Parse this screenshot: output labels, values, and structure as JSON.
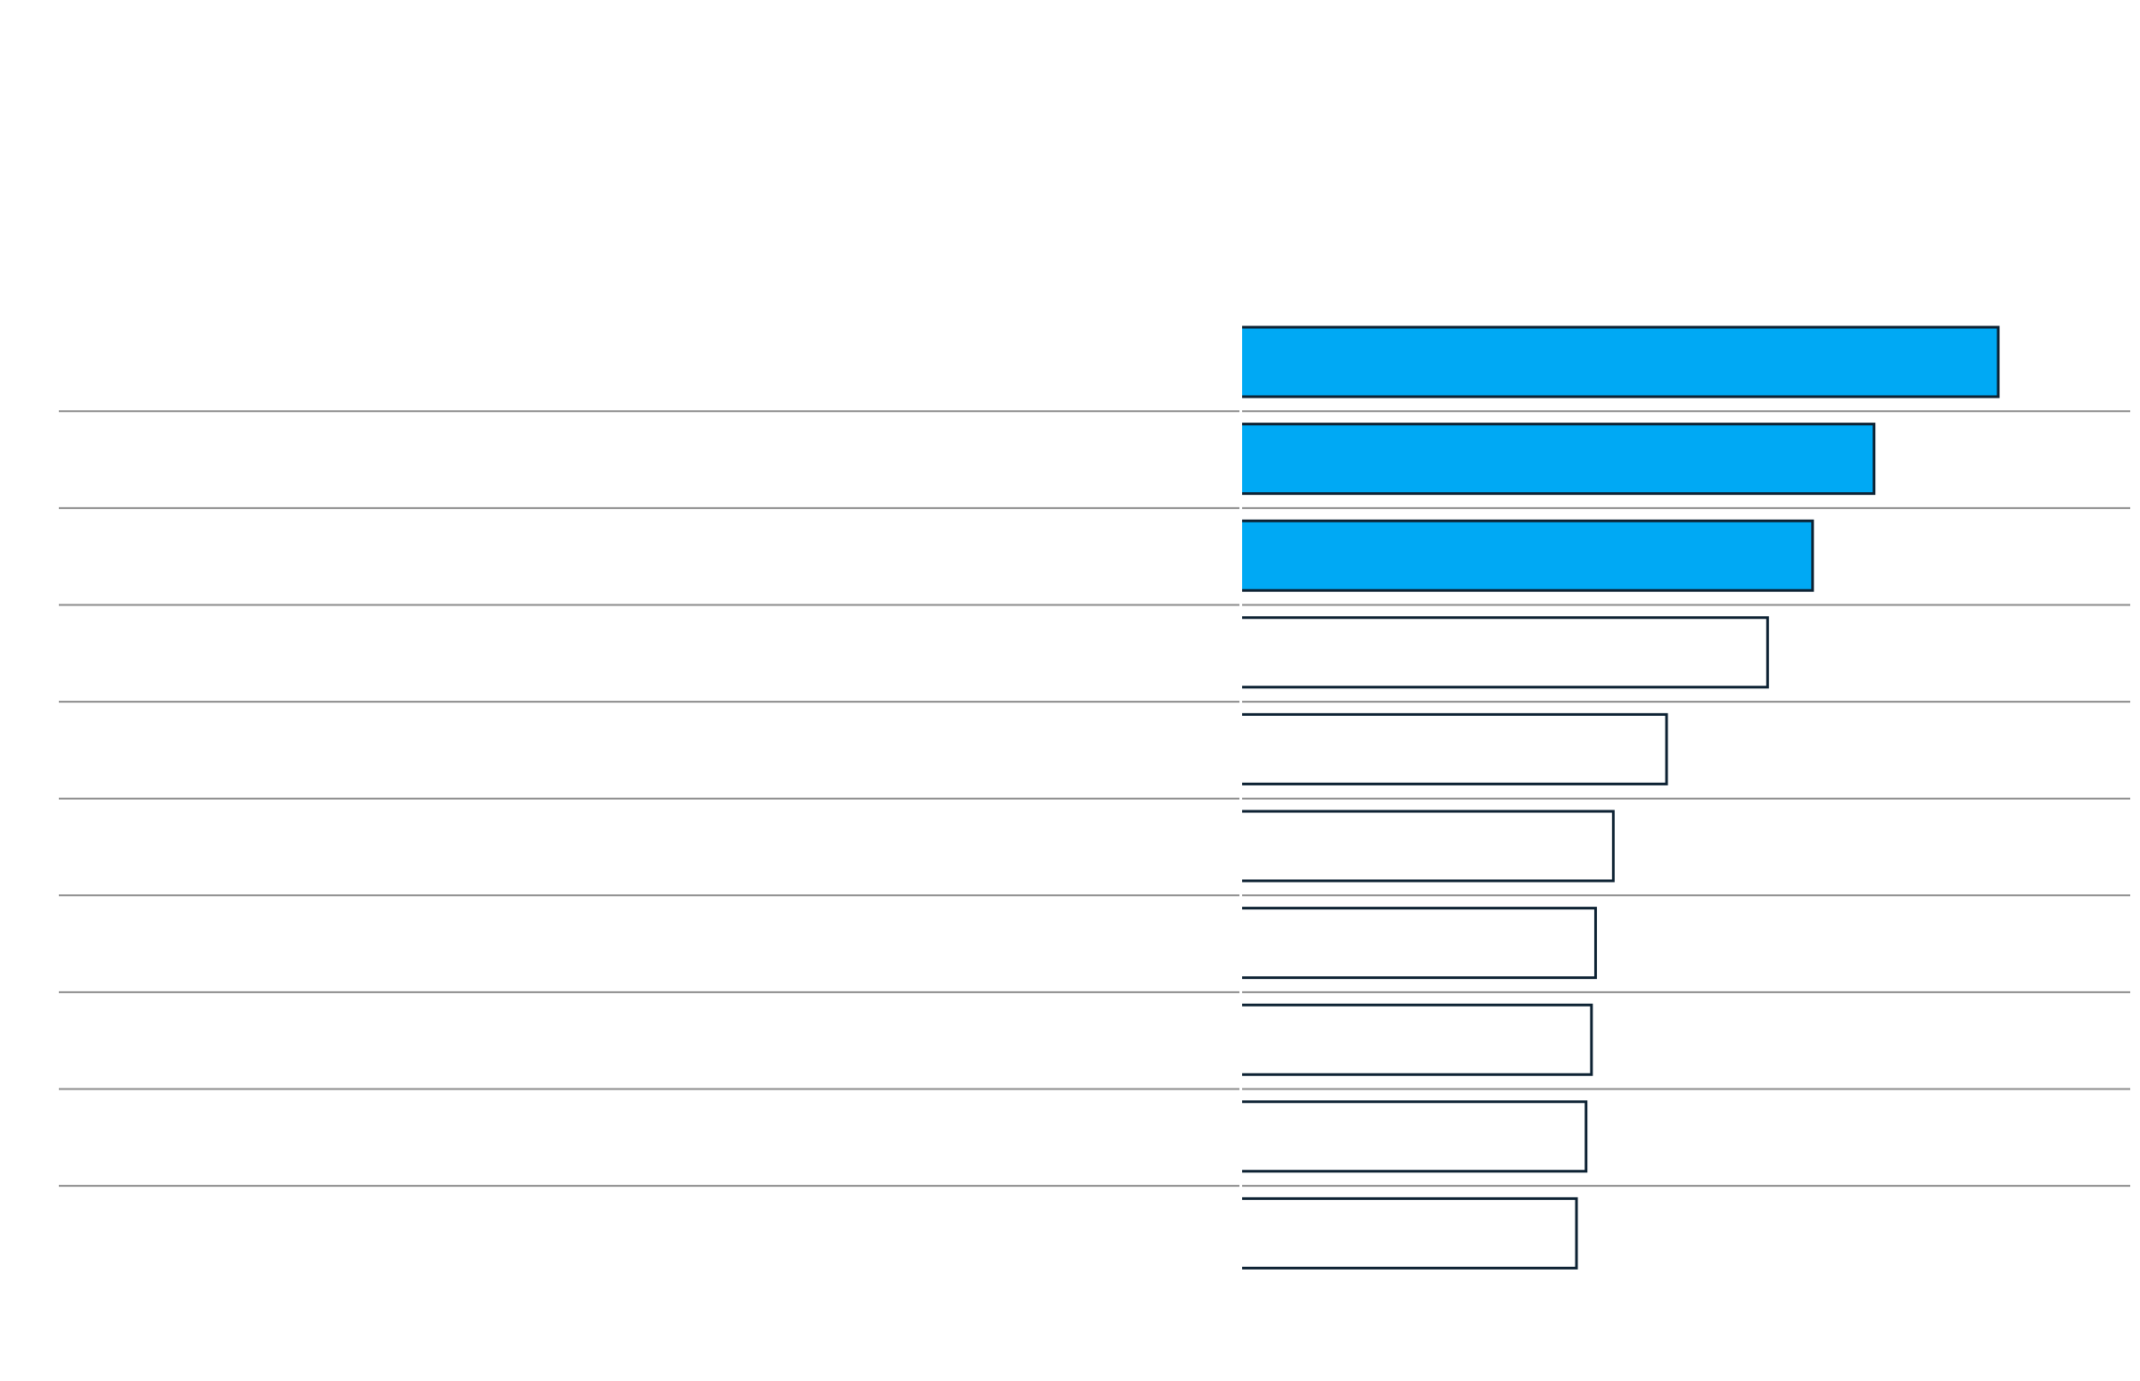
{
  "chart_data": {
    "type": "bar",
    "orientation": "horizontal",
    "title": "",
    "xlabel": "",
    "ylabel": "",
    "categories": [
      "",
      "",
      "",
      "",
      "",
      "",
      "",
      "",
      "",
      ""
    ],
    "values": [
      554,
      463,
      418,
      385,
      311,
      272,
      259,
      256,
      252,
      245
    ],
    "highlighted": [
      true,
      true,
      true,
      false,
      false,
      false,
      false,
      false,
      false,
      false
    ],
    "xlim": [
      0,
      650
    ],
    "grid": false,
    "colors": {
      "highlight_fill": "#00a9f4",
      "plain_fill": "#ffffff",
      "bar_stroke": "#0d2233",
      "divider": "#8c8c8c"
    }
  }
}
